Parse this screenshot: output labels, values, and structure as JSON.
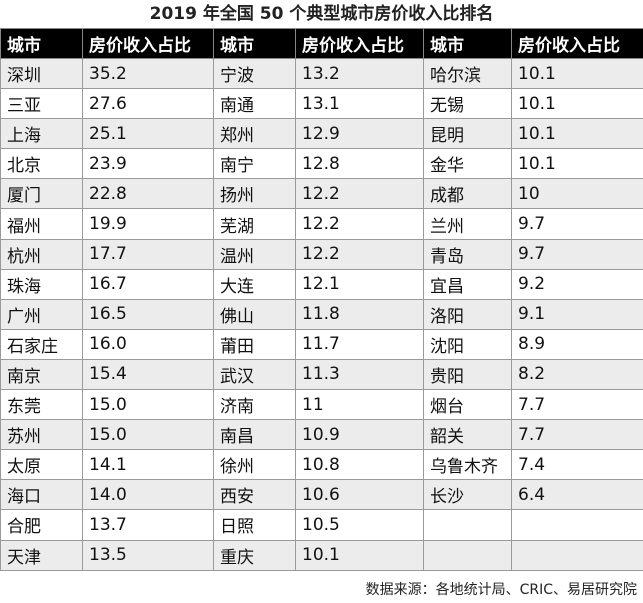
{
  "title": "2019 年全国 50 个典型城市房价收入比排名",
  "headers": [
    "城市",
    "房价收入占比",
    "城市",
    "房价收入占比",
    "城市",
    "房价收入占比"
  ],
  "rows": [
    [
      "深圳",
      "35.2",
      "宁波",
      "13.2",
      "哈尔滨",
      "10.1"
    ],
    [
      "三亚",
      "27.6",
      "南通",
      "13.1",
      "无锡",
      "10.1"
    ],
    [
      "上海",
      "25.1",
      "郑州",
      "12.9",
      "昆明",
      "10.1"
    ],
    [
      "北京",
      "23.9",
      "南宁",
      "12.8",
      "金华",
      "10.1"
    ],
    [
      "厦门",
      "22.8",
      "扬州",
      "12.2",
      "成都",
      "10"
    ],
    [
      "福州",
      "19.9",
      "芜湖",
      "12.2",
      "兰州",
      "9.7"
    ],
    [
      "杭州",
      "17.7",
      "温州",
      "12.2",
      "青岛",
      "9.7"
    ],
    [
      "珠海",
      "16.7",
      "大连",
      "12.1",
      "宜昌",
      "9.2"
    ],
    [
      "广州",
      "16.5",
      "佛山",
      "11.8",
      "洛阳",
      "9.1"
    ],
    [
      "石家庄",
      "16.0",
      "莆田",
      "11.7",
      "沈阳",
      "8.9"
    ],
    [
      "南京",
      "15.4",
      "武汉",
      "11.3",
      "贵阳",
      "8.2"
    ],
    [
      "东莞",
      "15.0",
      "济南",
      "11",
      "烟台",
      "7.7"
    ],
    [
      "苏州",
      "15.0",
      "南昌",
      "10.9",
      "韶关",
      "7.7"
    ],
    [
      "太原",
      "14.1",
      "徐州",
      "10.8",
      "乌鲁木齐",
      "7.4"
    ],
    [
      "海口",
      "14.0",
      "西安",
      "10.6",
      "长沙",
      "6.4"
    ],
    [
      "合肥",
      "13.7",
      "日照",
      "10.5",
      "",
      ""
    ],
    [
      "天津",
      "13.5",
      "重庆",
      "10.1",
      "",
      ""
    ]
  ],
  "source": "数据来源：各地统计局、CRIC、易居研究院"
}
